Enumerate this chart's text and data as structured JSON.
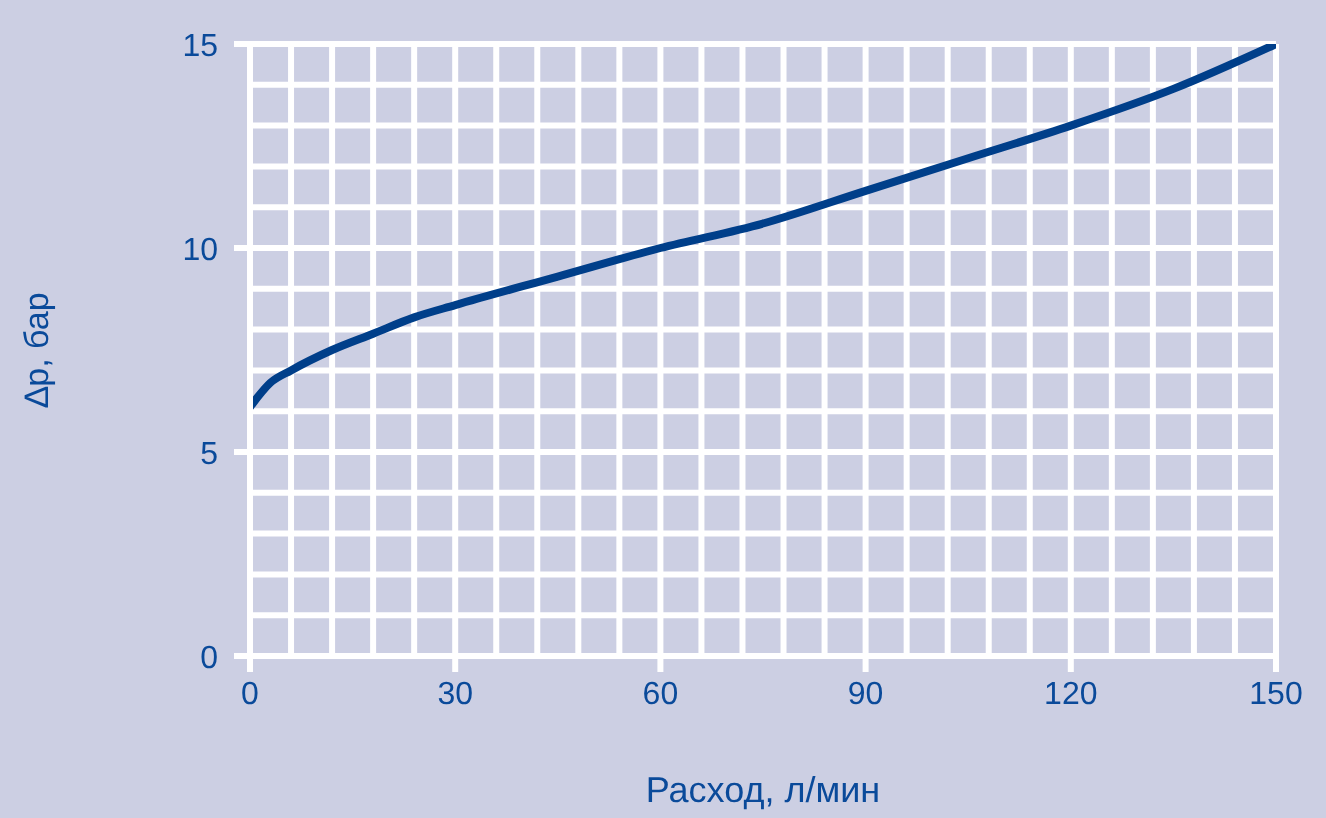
{
  "chart_data": {
    "type": "line",
    "xlabel": "Расход, л/мин",
    "ylabel": "∆p, бар",
    "x": [
      0,
      3,
      6,
      12,
      18,
      24,
      30,
      45,
      60,
      75,
      90,
      105,
      120,
      135,
      150
    ],
    "series": [
      {
        "color": "#003f8a",
        "values": [
          6.1,
          6.7,
          7.0,
          7.5,
          7.9,
          8.3,
          8.6,
          9.3,
          10,
          10.6,
          11.4,
          12.2,
          13.0,
          13.9,
          15
        ]
      }
    ],
    "xlim": [
      0,
      150
    ],
    "ylim": [
      0,
      15
    ],
    "xticks": [
      0,
      {
        "value": 6,
        "label": null
      },
      {
        "value": 12,
        "label": null
      },
      {
        "value": 18,
        "label": null
      },
      {
        "value": 24,
        "label": null
      },
      30,
      {
        "value": 36,
        "label": null
      },
      {
        "value": 42,
        "label": null
      },
      {
        "value": 48,
        "label": null
      },
      {
        "value": 54,
        "label": null
      },
      60,
      {
        "value": 66,
        "label": null
      },
      {
        "value": 72,
        "label": null
      },
      {
        "value": 78,
        "label": null
      },
      {
        "value": 84,
        "label": null
      },
      90,
      {
        "value": 96,
        "label": null
      },
      {
        "value": 102,
        "label": null
      },
      {
        "value": 108,
        "label": null
      },
      {
        "value": 114,
        "label": null
      },
      120,
      {
        "value": 126,
        "label": null
      },
      {
        "value": 132,
        "label": null
      },
      {
        "value": 138,
        "label": null
      },
      {
        "value": 144,
        "label": null
      },
      150
    ],
    "yticks": [
      0,
      {
        "value": 1,
        "label": null
      },
      {
        "value": 2,
        "label": null
      },
      {
        "value": 3,
        "label": null
      },
      {
        "value": 4,
        "label": null
      },
      5,
      {
        "value": 6,
        "label": null
      },
      {
        "value": 7,
        "label": null
      },
      {
        "value": 8,
        "label": null
      },
      {
        "value": 9,
        "label": null
      },
      10,
      {
        "value": 11,
        "label": null
      },
      {
        "value": 12,
        "label": null
      },
      {
        "value": 13,
        "label": null
      },
      {
        "value": 14,
        "label": null
      },
      15
    ],
    "grid": true,
    "marker": "none",
    "line_style": "solid"
  }
}
